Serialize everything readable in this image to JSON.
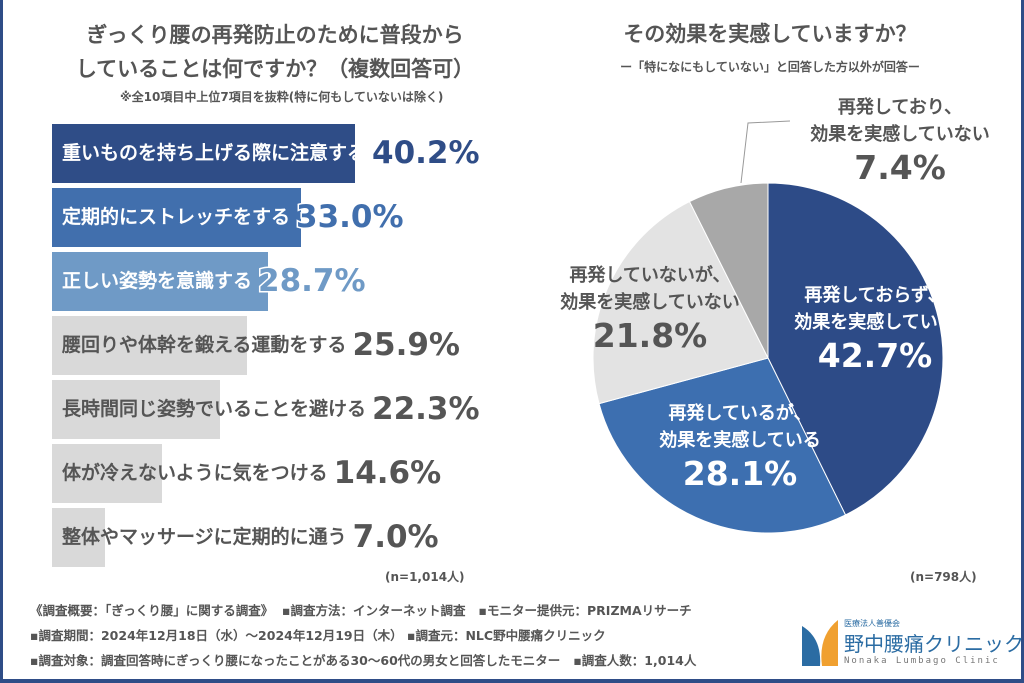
{
  "left": {
    "title_line1": "ぎっくり腰の再発防止のために普段から",
    "title_line2": "していることは何ですか？（複数回答可）",
    "note": "※全10項目中上位7項目を抜粋(特に何もしていないは除く)",
    "sample": "(n=1,014人)"
  },
  "right": {
    "title": "その効果を実感していますか？",
    "note": "ー「特になにもしていない」と回答した方以外が回答ー",
    "sample": "(n=798人)"
  },
  "chart_data": [
    {
      "type": "bar",
      "orientation": "horizontal",
      "unit": "%",
      "categories": [
        "重いものを持ち上げる際に注意する",
        "定期的にストレッチをする",
        "正しい姿勢を意識する",
        "腰回りや体幹を鍛える運動をする",
        "長時間同じ姿勢でいることを避ける",
        "体が冷えないように気をつける",
        "整体やマッサージに定期的に通う"
      ],
      "values": [
        40.2,
        33.0,
        28.7,
        25.9,
        22.3,
        14.6,
        7.0
      ],
      "labels": [
        "40.2%",
        "33.0%",
        "28.7%",
        "25.9%",
        "22.3%",
        "14.6%",
        "7.0%"
      ],
      "colors": [
        "#2f4d87",
        "#416fad",
        "#6f9ac6",
        "#d9d9d9",
        "#d9d9d9",
        "#d9d9d9",
        "#d9d9d9"
      ],
      "label_colors": [
        "#2f4d87",
        "#416fad",
        "#6f9ac6",
        "#555555",
        "#555555",
        "#555555",
        "#555555"
      ]
    },
    {
      "type": "pie",
      "slices": [
        {
          "label_line1": "再発しておらず、",
          "label_line2": "効果を実感している",
          "value": 42.7,
          "label": "42.7%",
          "color": "#2d4b87"
        },
        {
          "label_line1": "再発しているが、",
          "label_line2": "効果を実感している",
          "value": 28.1,
          "label": "28.1%",
          "color": "#3d6fb0"
        },
        {
          "label_line1": "再発していないが、",
          "label_line2": "効果を実感していない",
          "value": 21.8,
          "label": "21.8%",
          "color": "#e3e3e3"
        },
        {
          "label_line1": "再発しており、",
          "label_line2": "効果を実感していない",
          "value": 7.4,
          "label": "7.4%",
          "color": "#a8a8a8"
        }
      ]
    }
  ],
  "footer": {
    "line1a": "《調査概要：「ぎっくり腰」に関する調査》",
    "line1b": "▪調査方法：インターネット調査",
    "line1c": "▪モニター提供元：PRIZMAリサーチ",
    "line2a": "▪調査期間：2024年12月18日（水）～2024年12月19日（木）",
    "line2b": "▪調査元：NLC野中腰痛クリニック",
    "line3a": "▪調査対象：調査回答時にぎっくり腰になったことがある30～60代の男女と回答したモニター",
    "line3b": "▪調査人数：1,014人"
  },
  "logo": {
    "small": "医療法人善優会",
    "name": "野中腰痛クリニック",
    "en": "Nonaka Lumbago Clinic",
    "color": "#2b6ca3",
    "accent": "#f0a030"
  }
}
